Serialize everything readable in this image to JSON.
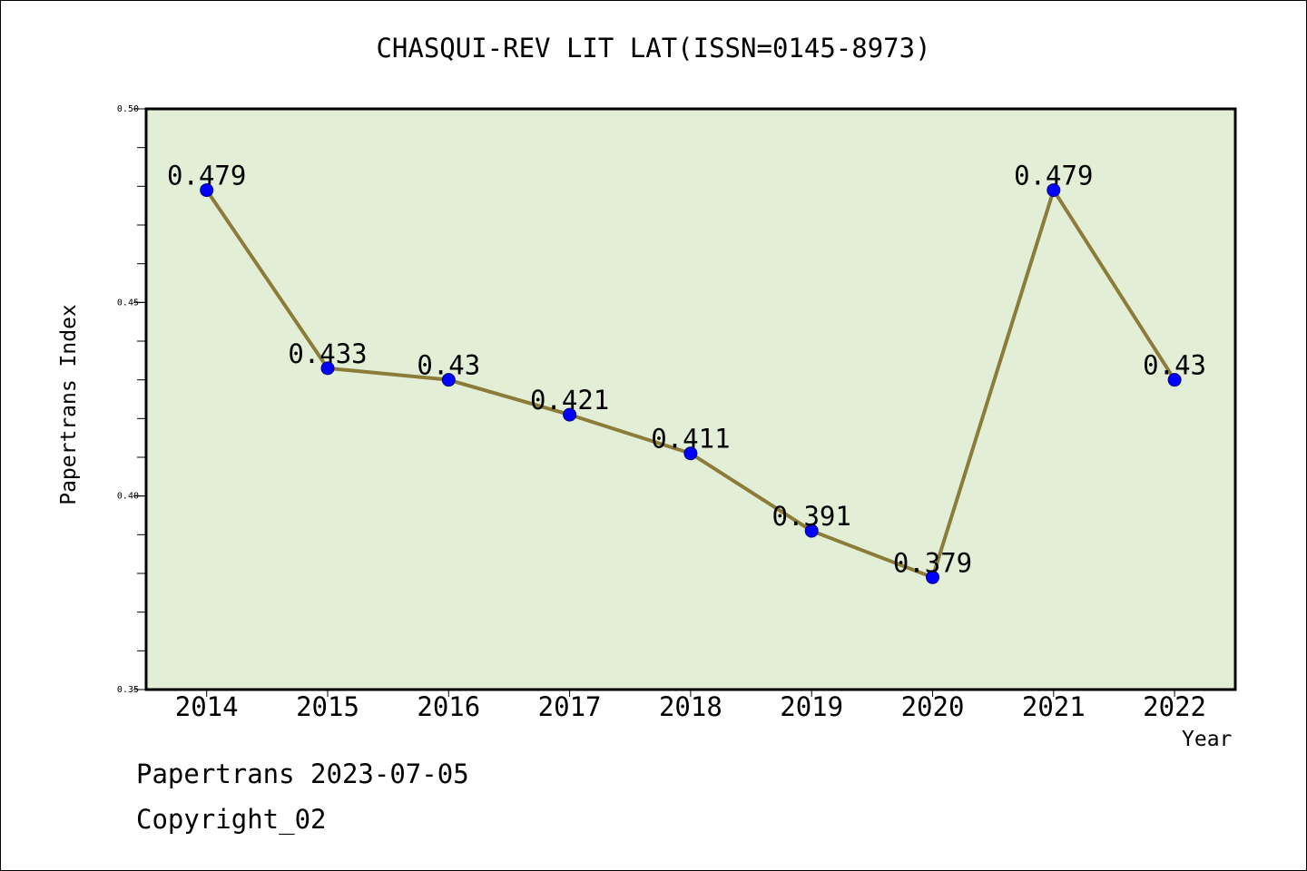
{
  "chart_data": {
    "type": "line",
    "title": "CHASQUI-REV LIT LAT(ISSN=0145-8973)",
    "xlabel": "Year",
    "ylabel": "Papertrans Index",
    "categories": [
      "2014",
      "2015",
      "2016",
      "2017",
      "2018",
      "2019",
      "2020",
      "2021",
      "2022"
    ],
    "values": [
      0.479,
      0.433,
      0.43,
      0.421,
      0.411,
      0.391,
      0.379,
      0.479,
      0.43
    ],
    "data_labels": [
      "0.479",
      "0.433",
      "0.43",
      "0.421",
      "0.411",
      "0.391",
      "0.379",
      "0.479",
      "0.43"
    ],
    "ylim": [
      0.35,
      0.5
    ],
    "y_ticks": [
      0.35,
      0.4,
      0.45,
      0.5
    ],
    "y_tick_labels": [
      "0.35",
      "0.40",
      "0.45",
      "0.50"
    ],
    "grid": false,
    "colors": {
      "plot_background": "#e2efd6",
      "line": "#8c7c3a",
      "marker": "#0000ff"
    }
  },
  "footer": {
    "date_text": "Papertrans 2023-07-05",
    "copyright_text": "Copyright_02"
  }
}
